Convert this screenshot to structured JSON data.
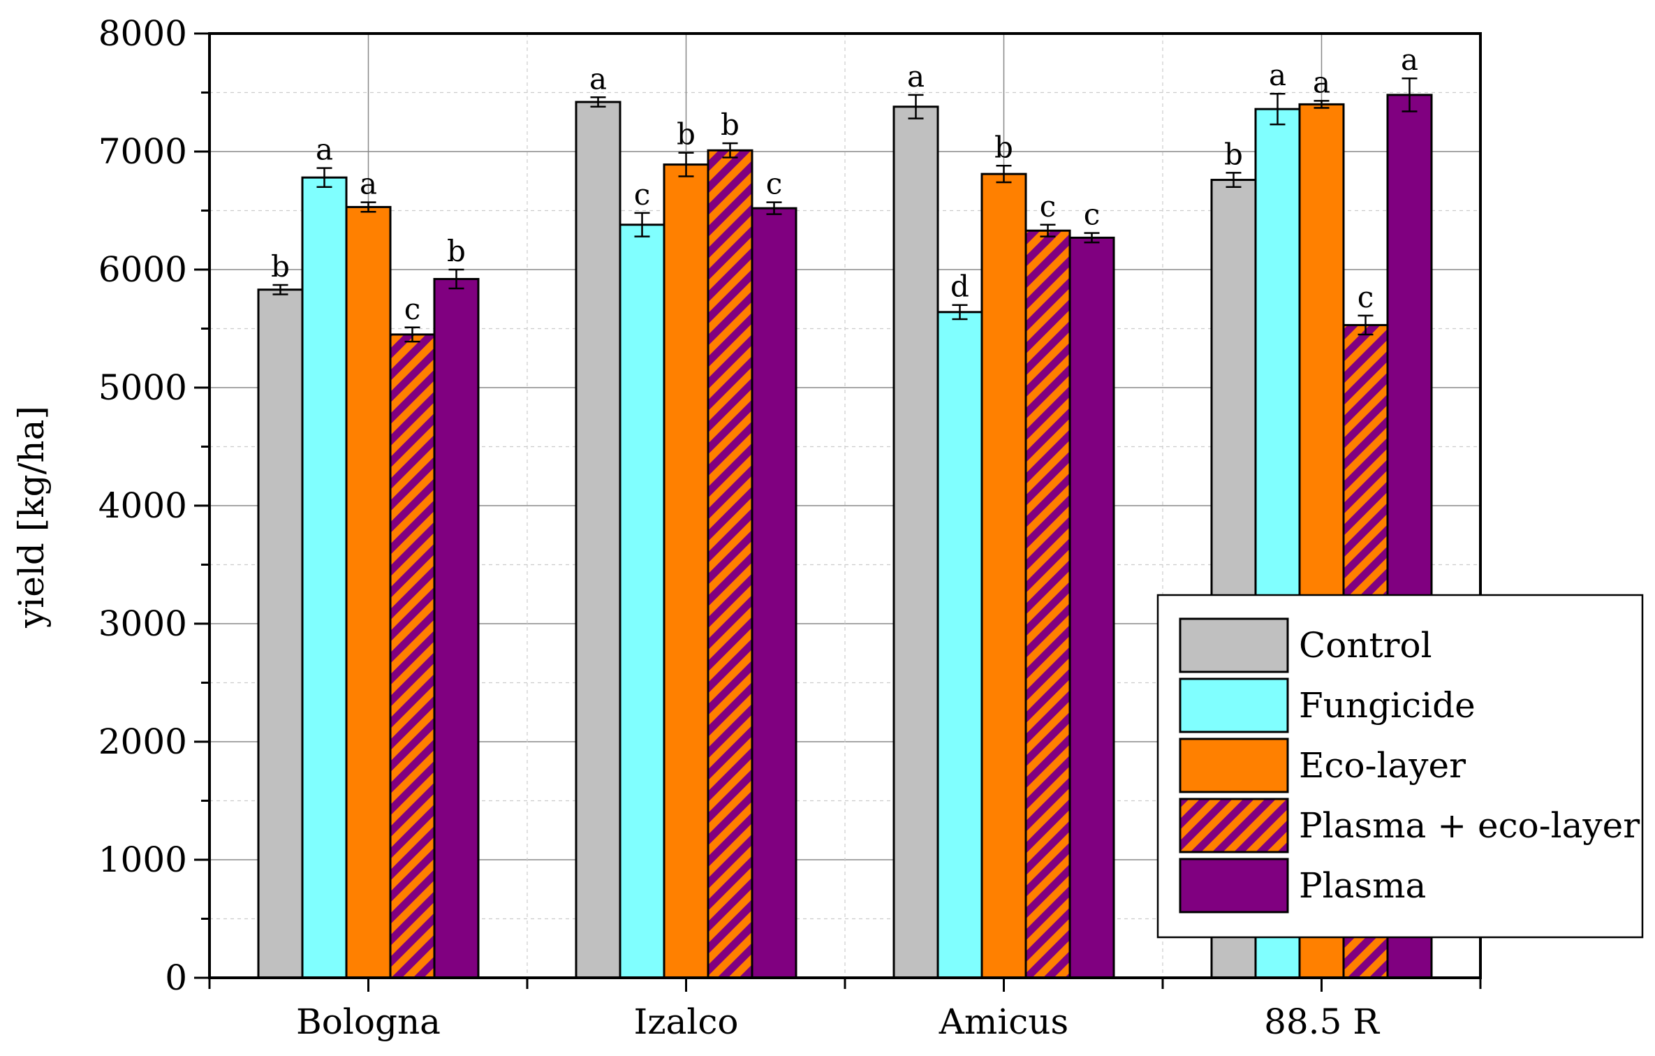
{
  "chart_data": {
    "type": "bar",
    "title": "",
    "xlabel": "",
    "ylabel": "yield [kg/ha]",
    "ylim": [
      0,
      8000
    ],
    "yticks": [
      0,
      1000,
      2000,
      3000,
      4000,
      5000,
      6000,
      7000,
      8000
    ],
    "grid": true,
    "legend_position": "bottom-right",
    "categories": [
      "Bologna",
      "Izalco",
      "Amicus",
      "88.5 R"
    ],
    "series": [
      {
        "name": "Control",
        "color": "#c0c0c0",
        "pattern": "solid",
        "values": [
          5830,
          7420,
          7380,
          6760
        ],
        "errors": [
          40,
          40,
          100,
          60
        ],
        "letters": [
          "b",
          "a",
          "a",
          "b"
        ]
      },
      {
        "name": "Fungicide",
        "color": "#80ffff",
        "pattern": "solid",
        "values": [
          6780,
          6380,
          5640,
          7360
        ],
        "errors": [
          80,
          100,
          60,
          130
        ],
        "letters": [
          "a",
          "c",
          "d",
          "a"
        ]
      },
      {
        "name": "Eco-layer",
        "color": "#ff8000",
        "pattern": "solid",
        "values": [
          6530,
          6890,
          6810,
          7400
        ],
        "errors": [
          40,
          100,
          70,
          30
        ],
        "letters": [
          "a",
          "b",
          "b",
          "a"
        ]
      },
      {
        "name": "Plasma + eco-layer",
        "color": "#ff8000",
        "pattern_color": "#800080",
        "pattern": "diagonal-stripes",
        "values": [
          5450,
          7010,
          6330,
          5530
        ],
        "errors": [
          60,
          60,
          50,
          80
        ],
        "letters": [
          "c",
          "b",
          "c",
          "c"
        ]
      },
      {
        "name": "Plasma",
        "color": "#800080",
        "pattern": "solid",
        "values": [
          5920,
          6520,
          6270,
          7480
        ],
        "errors": [
          80,
          50,
          40,
          140
        ],
        "letters": [
          "b",
          "c",
          "c",
          "a"
        ]
      }
    ]
  }
}
